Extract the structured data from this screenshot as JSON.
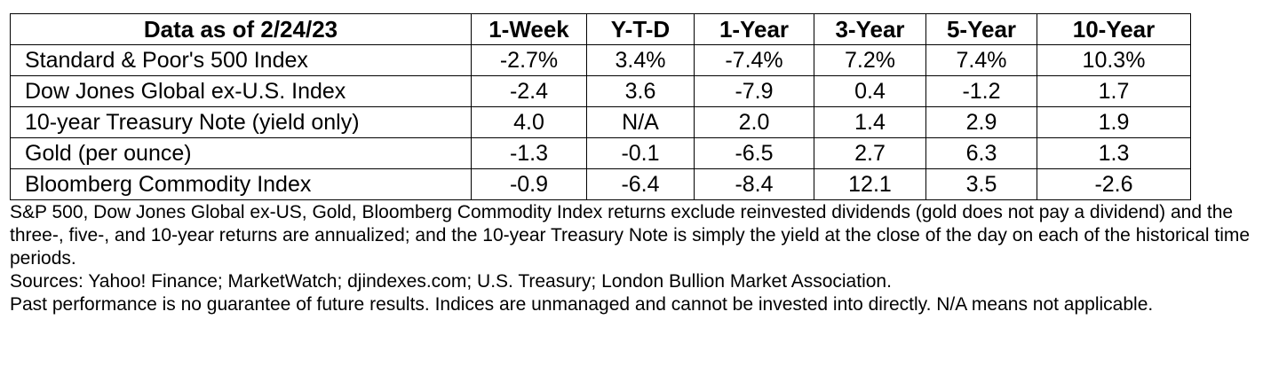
{
  "table": {
    "columns": [
      "Data as of 2/24/23",
      "1-Week",
      "Y-T-D",
      "1-Year",
      "3-Year",
      "5-Year",
      "10-Year"
    ],
    "rows": [
      {
        "name": "Standard & Poor's 500 Index",
        "values": [
          "-2.7%",
          "3.4%",
          "-7.4%",
          "7.2%",
          "7.4%",
          "10.3%"
        ]
      },
      {
        "name": "Dow Jones Global ex-U.S. Index",
        "values": [
          "-2.4",
          "3.6",
          "-7.9",
          "0.4",
          "-1.2",
          "1.7"
        ]
      },
      {
        "name": "10-year Treasury Note (yield only)",
        "values": [
          "4.0",
          "N/A",
          "2.0",
          "1.4",
          "2.9",
          "1.9"
        ]
      },
      {
        "name": "Gold (per ounce)",
        "values": [
          "-1.3",
          "-0.1",
          "-6.5",
          "2.7",
          "6.3",
          "1.3"
        ]
      },
      {
        "name": "Bloomberg Commodity Index",
        "values": [
          "-0.9",
          "-6.4",
          "-8.4",
          "12.1",
          "3.5",
          "-2.6"
        ]
      }
    ]
  },
  "notes": {
    "methodology": "S&P 500, Dow Jones Global ex-US, Gold, Bloomberg Commodity Index returns exclude reinvested dividends (gold does not pay a dividend) and the three-, five-, and 10-year returns are annualized; and the 10-year Treasury Note is simply the yield at the close of the day on each of the historical time periods.",
    "sources": "Sources: Yahoo! Finance; MarketWatch; djindexes.com; U.S. Treasury; London Bullion Market Association.",
    "disclaimer": "Past performance is no guarantee of future results. Indices are unmanaged and cannot be invested into directly. N/A means not applicable."
  }
}
